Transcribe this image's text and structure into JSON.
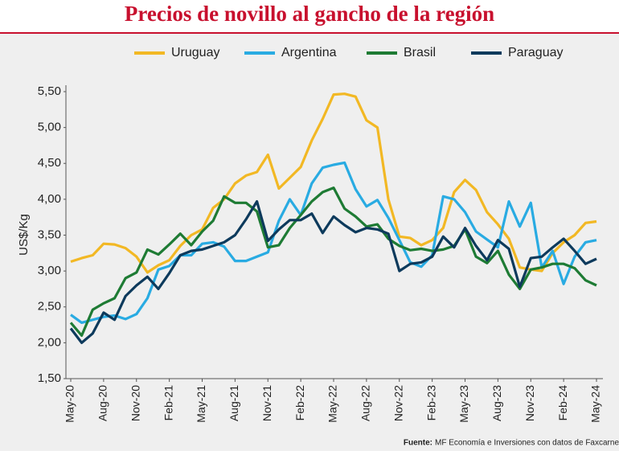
{
  "chart_data": {
    "type": "line",
    "title": "Precios de novillo al gancho de la región",
    "y_label": "US$/Kg",
    "source_label": "Fuente:",
    "source": "MF Economía e Inversiones con datos de Faxcarne",
    "categories": [
      "May-20",
      null,
      null,
      "Aug-20",
      null,
      null,
      "Nov-20",
      null,
      null,
      "Feb-21",
      null,
      null,
      "May-21",
      null,
      null,
      "Aug-21",
      null,
      null,
      "Nov-21",
      null,
      null,
      "Feb-22",
      null,
      null,
      "May-22",
      null,
      null,
      "Aug-22",
      null,
      null,
      "Nov-22",
      null,
      null,
      "Feb-23",
      null,
      null,
      "May-23",
      null,
      null,
      "Aug-23",
      null,
      null,
      "Nov-23",
      null,
      null,
      "Feb-24",
      null,
      null,
      "May-24"
    ],
    "ylim": [
      1.5,
      5.5
    ],
    "yticks": [
      {
        "value": 1.5,
        "label": "1,50"
      },
      {
        "value": 2,
        "label": "2,00"
      },
      {
        "value": 2.5,
        "label": "2,50"
      },
      {
        "value": 3,
        "label": "3,00"
      },
      {
        "value": 3.5,
        "label": "3,50"
      },
      {
        "value": 4,
        "label": "4,00"
      },
      {
        "value": 4.5,
        "label": "4,50"
      },
      {
        "value": 5,
        "label": "5,00"
      },
      {
        "value": 5.5,
        "label": "5,50"
      }
    ],
    "grid": false,
    "series": [
      {
        "name": "Uruguay",
        "color": "#f2b824",
        "values": [
          3.13,
          3.18,
          3.22,
          3.38,
          3.37,
          3.32,
          3.2,
          2.98,
          3.08,
          3.15,
          3.35,
          3.5,
          3.58,
          3.88,
          4.0,
          4.22,
          4.33,
          4.38,
          4.62,
          4.15,
          4.3,
          4.45,
          4.82,
          5.12,
          5.46,
          5.47,
          5.43,
          5.1,
          5.0,
          4.0,
          3.48,
          3.46,
          3.36,
          3.43,
          3.6,
          4.1,
          4.27,
          4.13,
          3.82,
          3.65,
          3.45,
          3.05,
          3.02,
          3.0,
          3.25,
          3.4,
          3.5,
          3.67,
          3.69
        ]
      },
      {
        "name": "Argentina",
        "color": "#29abe2",
        "values": [
          2.39,
          2.28,
          2.32,
          2.36,
          2.38,
          2.33,
          2.4,
          2.62,
          3.02,
          3.07,
          3.22,
          3.22,
          3.38,
          3.4,
          3.34,
          3.14,
          3.14,
          3.2,
          3.26,
          3.7,
          4.0,
          3.78,
          4.22,
          4.44,
          4.48,
          4.51,
          4.14,
          3.9,
          3.99,
          3.74,
          3.43,
          3.12,
          3.06,
          3.22,
          4.04,
          4.0,
          3.82,
          3.55,
          3.44,
          3.33,
          3.97,
          3.62,
          3.95,
          3.05,
          3.28,
          2.82,
          3.2,
          3.4,
          3.43
        ]
      },
      {
        "name": "Brasil",
        "color": "#1e7b34",
        "values": [
          2.28,
          2.1,
          2.46,
          2.55,
          2.62,
          2.9,
          2.98,
          3.3,
          3.23,
          3.37,
          3.52,
          3.36,
          3.55,
          3.7,
          4.04,
          3.95,
          3.95,
          3.83,
          3.33,
          3.36,
          3.6,
          3.78,
          3.97,
          4.1,
          4.16,
          3.87,
          3.76,
          3.62,
          3.65,
          3.45,
          3.35,
          3.29,
          3.31,
          3.28,
          3.3,
          3.35,
          3.58,
          3.2,
          3.11,
          3.28,
          2.95,
          2.75,
          3.02,
          3.05,
          3.1,
          3.1,
          3.04,
          2.87,
          2.8
        ]
      },
      {
        "name": "Paraguay",
        "color": "#0d3a5c",
        "values": [
          2.2,
          2.0,
          2.13,
          2.42,
          2.32,
          2.65,
          2.8,
          2.92,
          2.75,
          2.97,
          3.22,
          3.28,
          3.3,
          3.35,
          3.4,
          3.5,
          3.72,
          3.97,
          3.42,
          3.58,
          3.71,
          3.71,
          3.8,
          3.53,
          3.76,
          3.64,
          3.54,
          3.6,
          3.58,
          3.52,
          3.0,
          3.1,
          3.12,
          3.2,
          3.48,
          3.33,
          3.6,
          3.35,
          3.15,
          3.43,
          3.31,
          2.78,
          3.18,
          3.2,
          3.33,
          3.45,
          3.28,
          3.1,
          3.17
        ]
      }
    ]
  }
}
